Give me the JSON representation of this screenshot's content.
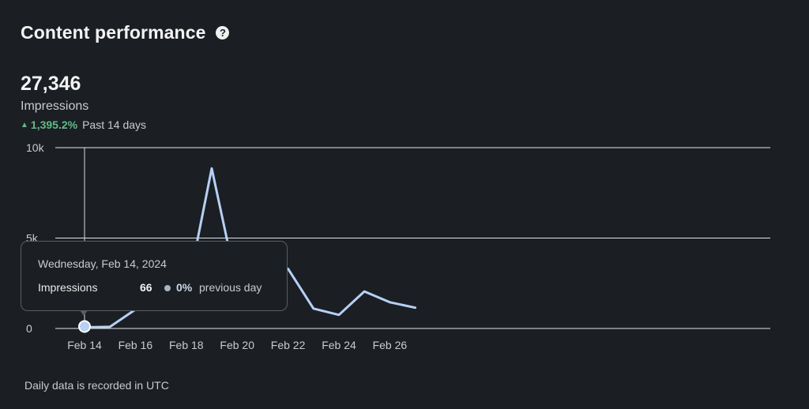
{
  "header": {
    "title": "Content performance",
    "help_icon": "question-circle-icon"
  },
  "metric": {
    "value": "27,346",
    "label": "Impressions",
    "change_arrow": "▲",
    "change_pct": "1,395.2%",
    "change_period": "Past 14 days"
  },
  "tooltip": {
    "date": "Wednesday, Feb 14, 2024",
    "metric_label": "Impressions",
    "metric_value": "66",
    "change_pct": "0%",
    "change_text": "previous day"
  },
  "footnote": "Daily data is recorded in UTC",
  "colors": {
    "line": "#b6d0f7",
    "positive": "#5ebd86",
    "background": "#1b1f23"
  },
  "chart_data": {
    "type": "line",
    "title": "",
    "xlabel": "",
    "ylabel": "",
    "ylim": [
      0,
      10000
    ],
    "yticks": [
      "0",
      "5k",
      "10k"
    ],
    "ytick_values": [
      0,
      5000,
      10000
    ],
    "xtick_labels": [
      "Feb 14",
      "Feb 16",
      "Feb 18",
      "Feb 20",
      "Feb 22",
      "Feb 24",
      "Feb 26"
    ],
    "x": [
      "Feb 14",
      "Feb 15",
      "Feb 16",
      "Feb 17",
      "Feb 18",
      "Feb 19",
      "Feb 20",
      "Feb 21",
      "Feb 22",
      "Feb 23",
      "Feb 24",
      "Feb 25",
      "Feb 26",
      "Feb 27"
    ],
    "series": [
      {
        "values": [
          66,
          90,
          1050,
          1100,
          1800,
          8850,
          2300,
          2550,
          3300,
          1100,
          750,
          2050,
          1450,
          1150
        ]
      }
    ],
    "selected_index": 0,
    "grid": true
  }
}
